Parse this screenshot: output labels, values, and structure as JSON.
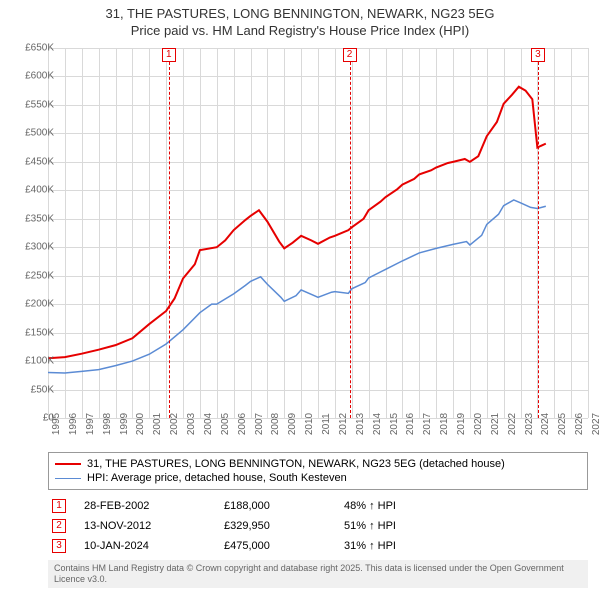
{
  "title": {
    "line1": "31, THE PASTURES, LONG BENNINGTON, NEWARK, NG23 5EG",
    "line2": "Price paid vs. HM Land Registry's House Price Index (HPI)",
    "fontsize": 13,
    "color": "#333333"
  },
  "chart": {
    "type": "line",
    "background": "#ffffff",
    "grid_color": "#d9d9d9",
    "xlim": [
      1995,
      2027
    ],
    "ylim": [
      0,
      650000
    ],
    "ytick_step": 50000,
    "ytick_labels": [
      "£0",
      "£50K",
      "£100K",
      "£150K",
      "£200K",
      "£250K",
      "£300K",
      "£350K",
      "£400K",
      "£450K",
      "£500K",
      "£550K",
      "£600K",
      "£650K"
    ],
    "xtick_step": 1,
    "xtick_labels": [
      "1995",
      "1996",
      "1997",
      "1998",
      "1999",
      "2000",
      "2001",
      "2002",
      "2003",
      "2004",
      "2005",
      "2006",
      "2007",
      "2008",
      "2009",
      "2010",
      "2011",
      "2012",
      "2013",
      "2014",
      "2015",
      "2016",
      "2017",
      "2018",
      "2019",
      "2020",
      "2021",
      "2022",
      "2023",
      "2024",
      "2025",
      "2026",
      "2027"
    ],
    "label_fontsize": 10,
    "label_color": "#666666"
  },
  "series": [
    {
      "name": "price-paid",
      "label": "31, THE PASTURES, LONG BENNINGTON, NEWARK, NG23 5EG (detached house)",
      "color": "#e60000",
      "line_width": 2,
      "points": [
        [
          1995,
          105000
        ],
        [
          1996,
          107000
        ],
        [
          1997,
          113000
        ],
        [
          1998,
          120000
        ],
        [
          1999,
          128000
        ],
        [
          2000,
          140000
        ],
        [
          2001,
          165000
        ],
        [
          2002,
          188000
        ],
        [
          2002.5,
          210000
        ],
        [
          2003,
          245000
        ],
        [
          2003.7,
          270000
        ],
        [
          2004,
          295000
        ],
        [
          2005,
          300000
        ],
        [
          2005.5,
          312000
        ],
        [
          2006,
          330000
        ],
        [
          2006.7,
          348000
        ],
        [
          2007,
          355000
        ],
        [
          2007.5,
          365000
        ],
        [
          2008,
          345000
        ],
        [
          2008.7,
          310000
        ],
        [
          2009,
          298000
        ],
        [
          2009.5,
          308000
        ],
        [
          2010,
          320000
        ],
        [
          2010.6,
          312000
        ],
        [
          2011,
          306000
        ],
        [
          2011.7,
          317000
        ],
        [
          2012,
          320000
        ],
        [
          2012.8,
          329950
        ],
        [
          2013,
          335000
        ],
        [
          2013.7,
          350000
        ],
        [
          2014,
          365000
        ],
        [
          2014.7,
          380000
        ],
        [
          2015,
          388000
        ],
        [
          2015.7,
          402000
        ],
        [
          2016,
          410000
        ],
        [
          2016.7,
          420000
        ],
        [
          2017,
          428000
        ],
        [
          2017.7,
          435000
        ],
        [
          2018,
          440000
        ],
        [
          2018.7,
          448000
        ],
        [
          2019,
          450000
        ],
        [
          2019.7,
          455000
        ],
        [
          2020,
          450000
        ],
        [
          2020.5,
          460000
        ],
        [
          2021,
          495000
        ],
        [
          2021.6,
          520000
        ],
        [
          2022,
          552000
        ],
        [
          2022.5,
          568000
        ],
        [
          2022.9,
          582000
        ],
        [
          2023.3,
          575000
        ],
        [
          2023.7,
          560000
        ],
        [
          2024,
          475000
        ],
        [
          2024.2,
          478000
        ],
        [
          2024.5,
          482000
        ]
      ]
    },
    {
      "name": "hpi",
      "label": "HPI: Average price, detached house, South Kesteven",
      "color": "#5b8bd4",
      "line_width": 1.5,
      "points": [
        [
          1995,
          80000
        ],
        [
          1996,
          79000
        ],
        [
          1997,
          82000
        ],
        [
          1998,
          85000
        ],
        [
          1999,
          92000
        ],
        [
          2000,
          100000
        ],
        [
          2001,
          112000
        ],
        [
          2002,
          130000
        ],
        [
          2003,
          155000
        ],
        [
          2004,
          185000
        ],
        [
          2004.7,
          200000
        ],
        [
          2005,
          200000
        ],
        [
          2006,
          218000
        ],
        [
          2006.7,
          233000
        ],
        [
          2007,
          240000
        ],
        [
          2007.6,
          248000
        ],
        [
          2008,
          235000
        ],
        [
          2008.8,
          212000
        ],
        [
          2009,
          205000
        ],
        [
          2009.7,
          215000
        ],
        [
          2010,
          225000
        ],
        [
          2010.7,
          216000
        ],
        [
          2011,
          212000
        ],
        [
          2011.8,
          221000
        ],
        [
          2012,
          222000
        ],
        [
          2012.8,
          219000
        ],
        [
          2013,
          227000
        ],
        [
          2013.8,
          238000
        ],
        [
          2014,
          246000
        ],
        [
          2015,
          261000
        ],
        [
          2016,
          276000
        ],
        [
          2017,
          290000
        ],
        [
          2018,
          298000
        ],
        [
          2019,
          305000
        ],
        [
          2019.8,
          310000
        ],
        [
          2020,
          304000
        ],
        [
          2020.7,
          321000
        ],
        [
          2021,
          340000
        ],
        [
          2021.7,
          358000
        ],
        [
          2022,
          373000
        ],
        [
          2022.6,
          383000
        ],
        [
          2023,
          378000
        ],
        [
          2023.6,
          370000
        ],
        [
          2024,
          368000
        ],
        [
          2024.5,
          372000
        ]
      ]
    }
  ],
  "markers": [
    {
      "num": "1",
      "x": 2002.16,
      "color": "#e60000"
    },
    {
      "num": "2",
      "x": 2012.87,
      "color": "#e60000"
    },
    {
      "num": "3",
      "x": 2024.03,
      "color": "#e60000"
    }
  ],
  "legend": {
    "border_color": "#999999",
    "fontsize": 11
  },
  "events": [
    {
      "num": "1",
      "color": "#e60000",
      "date": "28-FEB-2002",
      "price": "£188,000",
      "pct": "48% ↑ HPI"
    },
    {
      "num": "2",
      "color": "#e60000",
      "date": "13-NOV-2012",
      "price": "£329,950",
      "pct": "51% ↑ HPI"
    },
    {
      "num": "3",
      "color": "#e60000",
      "date": "10-JAN-2024",
      "price": "£475,000",
      "pct": "31% ↑ HPI"
    }
  ],
  "footer": {
    "text": "Contains HM Land Registry data © Crown copyright and database right 2025. This data is licensed under the Open Government Licence v3.0.",
    "background": "#f0f0f0",
    "color": "#666666",
    "fontsize": 9
  }
}
